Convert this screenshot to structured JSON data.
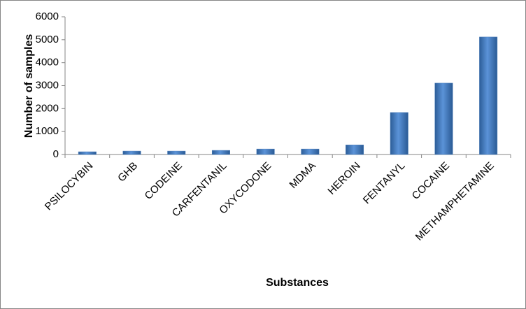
{
  "chart_data": {
    "type": "bar",
    "x_label": "Substances",
    "y_label": "Number of samples",
    "categories": [
      "PSILOCYBIN",
      "GHB",
      "CODEINE",
      "CARFENTANIL",
      "OXYCODONE",
      "MDMA",
      "HEROIN",
      "FENTANYL",
      "COCAINE",
      "METHAMPHETAMINE"
    ],
    "values": [
      120,
      150,
      150,
      180,
      240,
      240,
      420,
      1830,
      3110,
      5120
    ],
    "color": "#4f81bd",
    "ylim": [
      0,
      6000
    ],
    "yticks": [
      0,
      1000,
      2000,
      3000,
      4000,
      5000,
      6000
    ],
    "grid": false
  }
}
